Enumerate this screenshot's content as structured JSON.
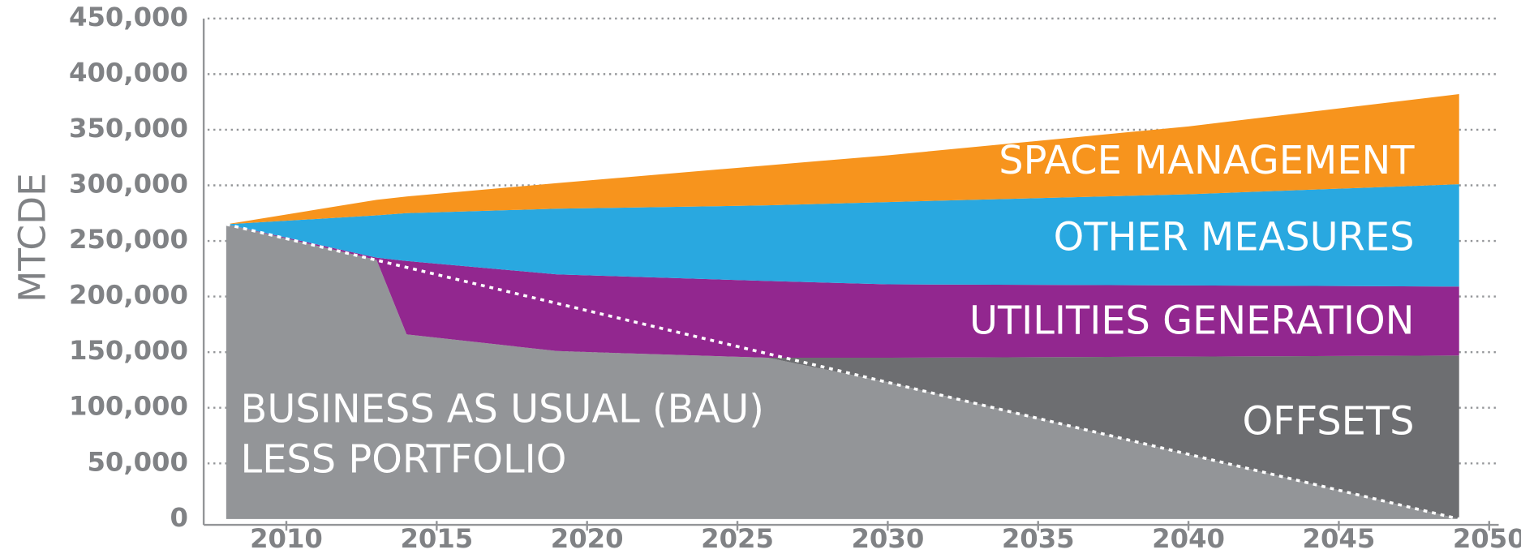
{
  "chart_data": {
    "type": "stacked_area",
    "y_label": "MTCDE",
    "x": [
      2008,
      2013,
      2014,
      2019,
      2026,
      2030,
      2040,
      2049
    ],
    "series": [
      {
        "name": "BUSINESS AS USUAL (BAU)\nLESS PORTFOLIO",
        "color": "#939598",
        "values": [
          265000,
          233000,
          166000,
          151000,
          145000,
          123000,
          58000,
          0
        ]
      },
      {
        "name": "OFFSETS",
        "color": "#6d6e71",
        "values": [
          0,
          0,
          0,
          0,
          0,
          22000,
          88000,
          147000
        ]
      },
      {
        "name": "UTILITIES GENERATION",
        "color": "#92278f",
        "values": [
          0,
          2000,
          66000,
          69000,
          69000,
          66000,
          64000,
          62000
        ]
      },
      {
        "name": "OTHER MEASURES",
        "color": "#29a8e0",
        "values": [
          0,
          38000,
          43000,
          59000,
          68000,
          74000,
          82000,
          92000
        ]
      },
      {
        "name": "SPACE MANAGEMENT",
        "color": "#f7941d",
        "values": [
          0,
          14000,
          15000,
          23000,
          36000,
          42000,
          61000,
          81000
        ]
      }
    ],
    "target_line": {
      "x": [
        2008,
        2049
      ],
      "values": [
        265000,
        0
      ],
      "color": "#ffffff"
    },
    "xlim": [
      2007.8,
      2050.8
    ],
    "xticks": [
      2010,
      2015,
      2020,
      2025,
      2030,
      2035,
      2040,
      2045,
      2050
    ],
    "ylim": [
      0,
      450000
    ],
    "yticks": [
      0,
      {
        "value": 50000,
        "label": "50,000"
      },
      {
        "value": 100000,
        "label": "100,000"
      },
      {
        "value": 150000,
        "label": "150,000"
      },
      {
        "value": 200000,
        "label": "200,000"
      },
      {
        "value": 250000,
        "label": "250,000"
      },
      {
        "value": 300000,
        "label": "300,000"
      },
      {
        "value": 350000,
        "label": "350,000"
      },
      {
        "value": 400000,
        "label": "400,000"
      },
      {
        "value": 450000,
        "label": "450,000"
      }
    ],
    "grid": true
  }
}
